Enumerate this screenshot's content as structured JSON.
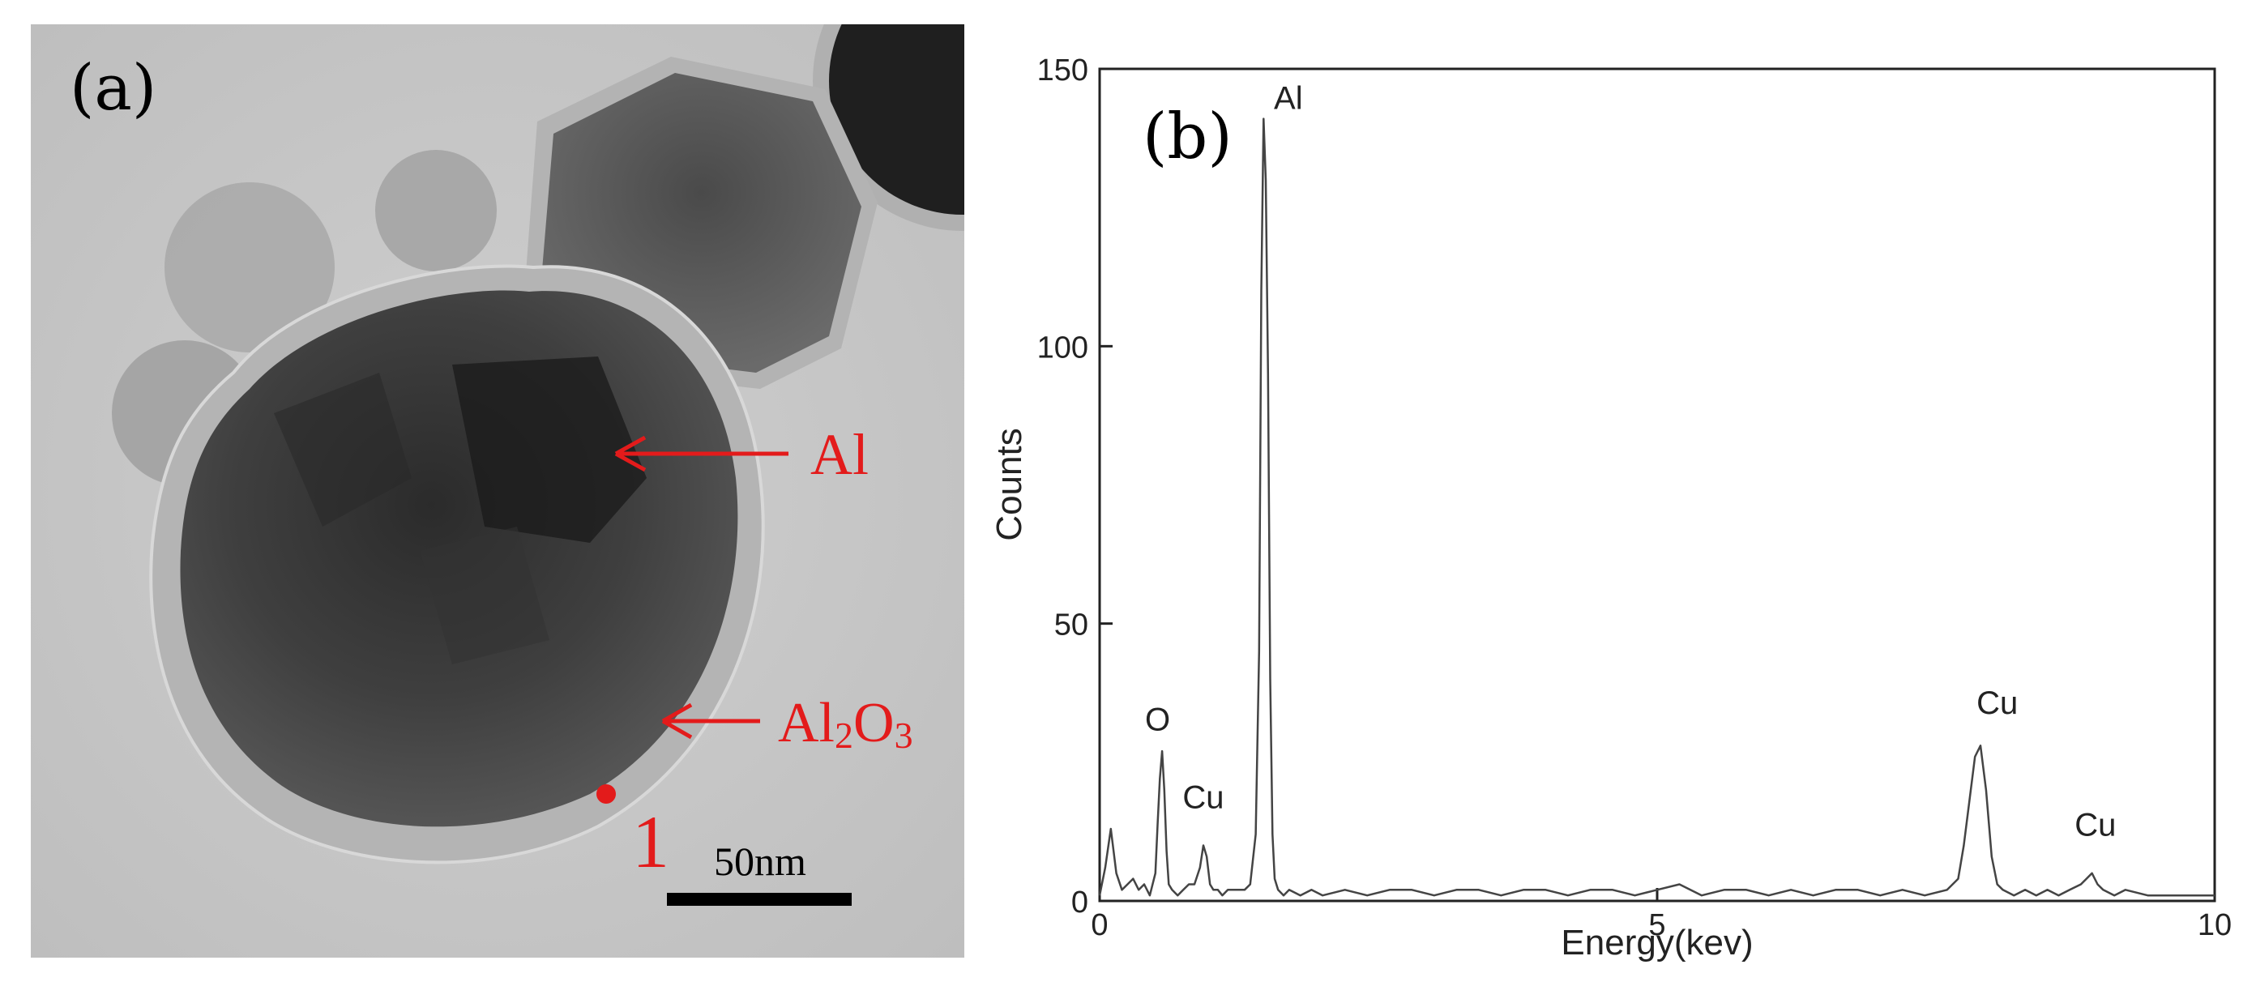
{
  "figure": {
    "panel_a": {
      "label": "(a)",
      "annotations": {
        "al": "Al",
        "al2o3_prefix": "Al",
        "al2o3_sub1": "2",
        "al2o3_mid": "O",
        "al2o3_sub2": "3",
        "point": "1"
      },
      "scale_bar": "50nm",
      "colors": {
        "annotation": "#e31b1b"
      }
    },
    "panel_b": {
      "label": "(b)"
    }
  },
  "chart_data": {
    "type": "line",
    "title": "",
    "xlabel": "Energy(kev)",
    "ylabel": "Counts",
    "xlim": [
      0,
      10
    ],
    "ylim": [
      0,
      150
    ],
    "xticks": [
      "0",
      "5",
      "10"
    ],
    "yticks": [
      "0",
      "50",
      "100",
      "150"
    ],
    "grid": false,
    "series": [
      {
        "x": [
          0.0,
          0.05,
          0.1,
          0.15,
          0.2,
          0.25,
          0.3,
          0.35,
          0.4,
          0.45,
          0.5,
          0.52,
          0.54,
          0.56,
          0.58,
          0.6,
          0.62,
          0.65,
          0.7,
          0.75,
          0.8,
          0.85,
          0.9,
          0.93,
          0.96,
          0.99,
          1.02,
          1.06,
          1.1,
          1.15,
          1.2,
          1.25,
          1.3,
          1.35,
          1.4,
          1.43,
          1.45,
          1.47,
          1.49,
          1.51,
          1.53,
          1.55,
          1.57,
          1.6,
          1.65,
          1.7,
          1.8,
          1.9,
          2.0,
          2.2,
          2.4,
          2.6,
          2.8,
          3.0,
          3.2,
          3.4,
          3.6,
          3.8,
          4.0,
          4.2,
          4.4,
          4.6,
          4.8,
          5.0,
          5.2,
          5.4,
          5.6,
          5.8,
          6.0,
          6.2,
          6.4,
          6.6,
          6.8,
          7.0,
          7.2,
          7.4,
          7.6,
          7.7,
          7.75,
          7.8,
          7.85,
          7.9,
          7.95,
          8.0,
          8.05,
          8.1,
          8.2,
          8.3,
          8.4,
          8.5,
          8.6,
          8.7,
          8.8,
          8.85,
          8.9,
          8.95,
          9.0,
          9.1,
          9.2,
          9.4,
          9.6,
          9.8,
          10.0
        ],
        "values": [
          1,
          6,
          13,
          5,
          2,
          3,
          4,
          2,
          3,
          1,
          5,
          14,
          22,
          27,
          20,
          9,
          3,
          2,
          1,
          2,
          3,
          3,
          6,
          10,
          8,
          3,
          2,
          2,
          1,
          2,
          2,
          2,
          2,
          3,
          12,
          45,
          110,
          141,
          130,
          95,
          40,
          12,
          4,
          2,
          1,
          2,
          1,
          2,
          1,
          2,
          1,
          2,
          2,
          1,
          2,
          2,
          1,
          2,
          2,
          1,
          2,
          2,
          1,
          2,
          3,
          1,
          2,
          2,
          1,
          2,
          1,
          2,
          2,
          1,
          2,
          1,
          2,
          4,
          10,
          18,
          26,
          28,
          20,
          8,
          3,
          2,
          1,
          2,
          1,
          2,
          1,
          2,
          3,
          4,
          5,
          3,
          2,
          1,
          2,
          1,
          1,
          1,
          1
        ]
      }
    ],
    "annotations": [
      {
        "text": "Al",
        "x": 1.49,
        "y": 141
      },
      {
        "text": "O",
        "x": 0.52,
        "y": 29
      },
      {
        "text": "Cu",
        "x": 0.93,
        "y": 15
      },
      {
        "text": "Cu",
        "x": 8.05,
        "y": 32
      },
      {
        "text": "Cu",
        "x": 8.93,
        "y": 10
      }
    ],
    "colors": {
      "line": "#444444",
      "axis": "#222222"
    }
  }
}
